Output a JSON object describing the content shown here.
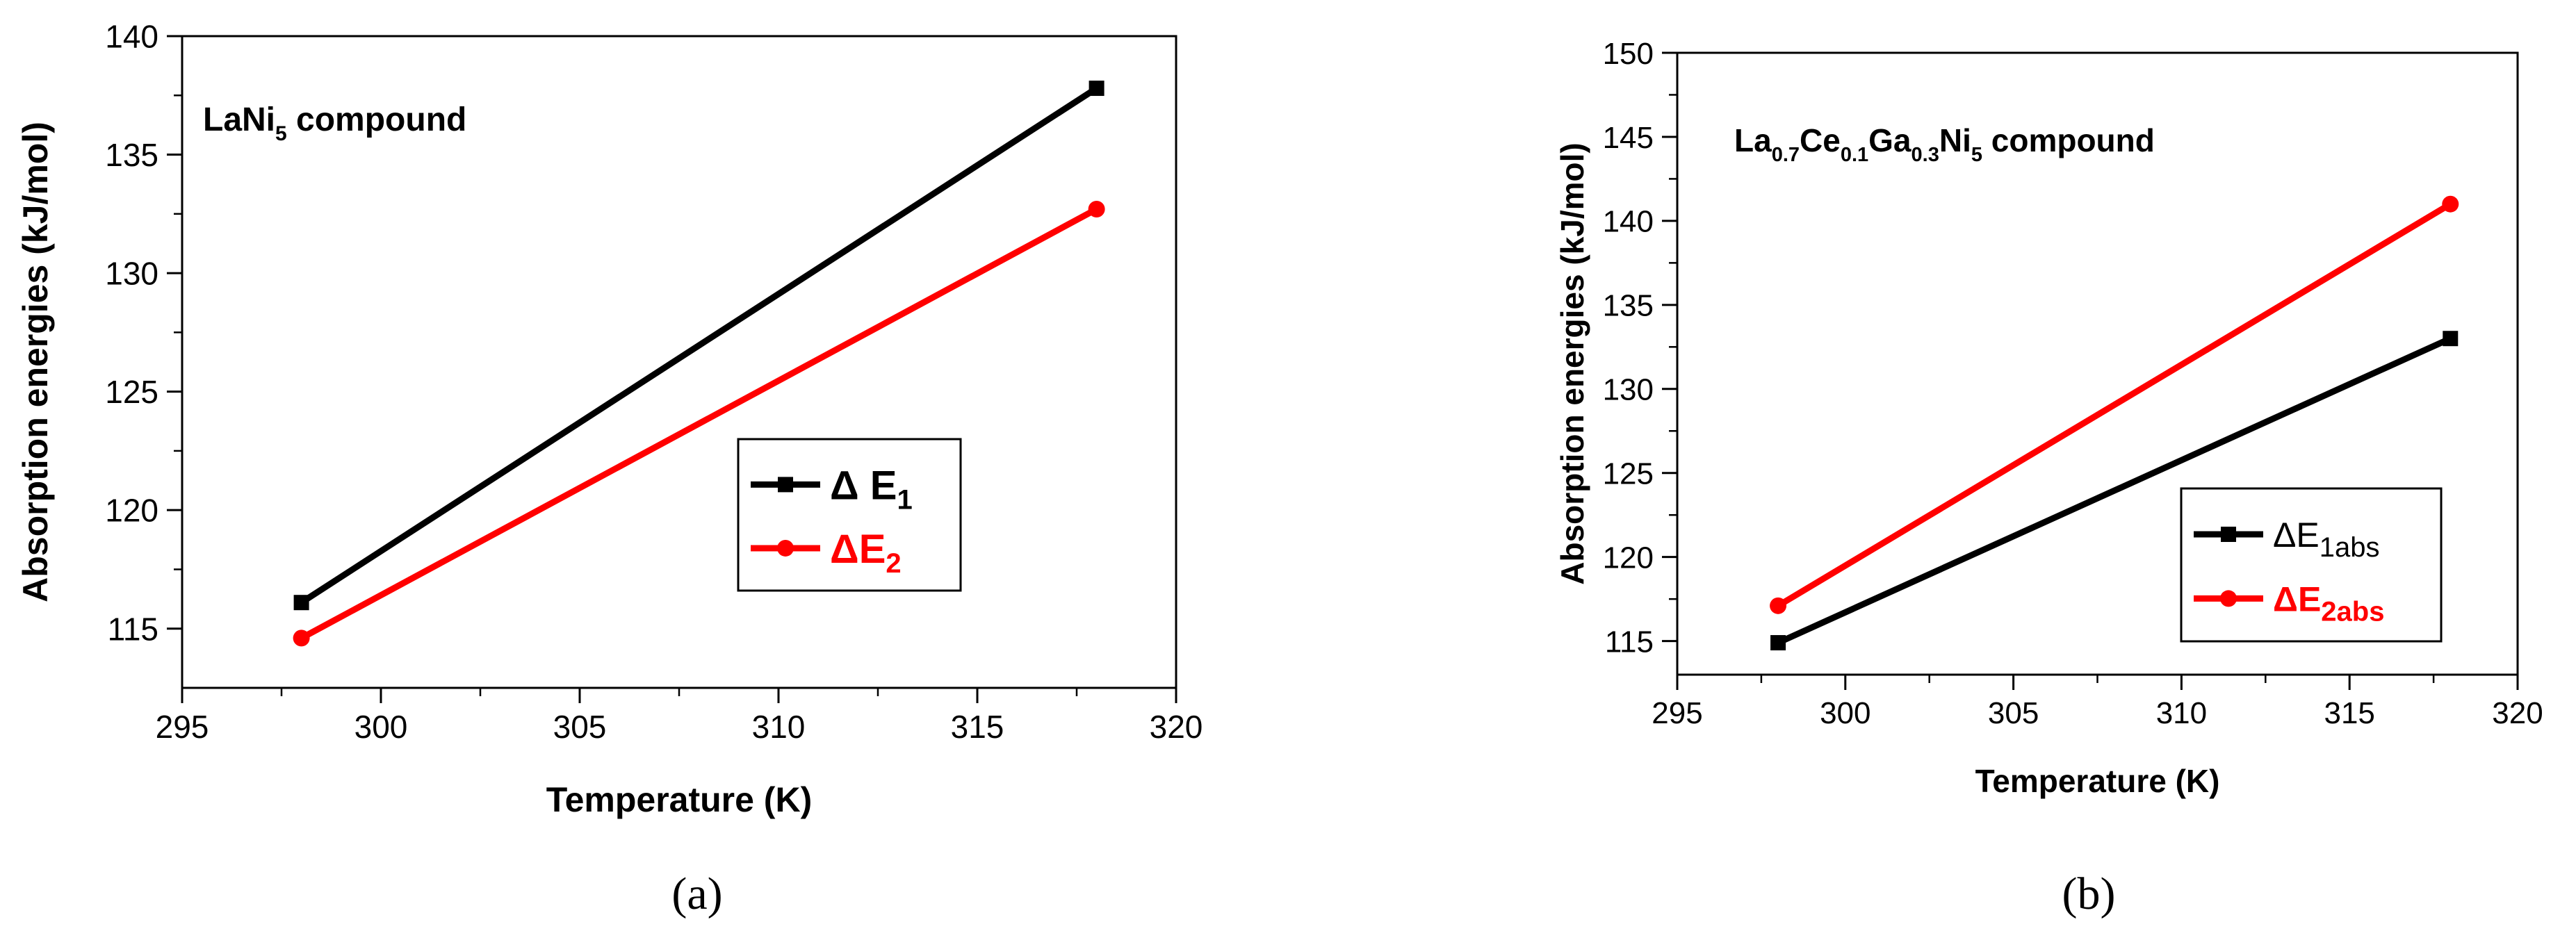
{
  "chart_data": [
    {
      "type": "line",
      "panel_label": "(a)",
      "annotation": {
        "base": "LaNi",
        "sub": "5",
        "tail": " compound"
      },
      "xlabel": "Temperature (K)",
      "ylabel": "Absorption energies (kJ/mol)",
      "xlim": [
        295,
        320
      ],
      "ylim": [
        112.5,
        140
      ],
      "xticks": [
        295,
        300,
        305,
        310,
        315,
        320
      ],
      "yticks": [
        115,
        120,
        125,
        130,
        135,
        140
      ],
      "grid": false,
      "legend_position": "center-right",
      "series": [
        {
          "name": "Δ E1",
          "legend": {
            "main": "Δ E",
            "sub": "1"
          },
          "color": "#000000",
          "marker": "square",
          "x": [
            298,
            318
          ],
          "y": [
            116.1,
            137.8
          ]
        },
        {
          "name": "ΔE2",
          "legend": {
            "main": "ΔE",
            "sub": "2"
          },
          "color": "#ff0000",
          "marker": "circle",
          "x": [
            298,
            318
          ],
          "y": [
            114.6,
            132.7
          ]
        }
      ]
    },
    {
      "type": "line",
      "panel_label": "(b)",
      "annotation": {
        "parts": [
          [
            "La",
            "0.7"
          ],
          [
            "Ce",
            "0.1"
          ],
          [
            "Ga",
            "0.3"
          ],
          [
            "Ni",
            "5"
          ]
        ],
        "tail": " compound"
      },
      "xlabel": "Temperature (K)",
      "ylabel": "Absorption energies (kJ/mol)",
      "xlim": [
        295,
        320
      ],
      "ylim": [
        113,
        150
      ],
      "xticks": [
        295,
        300,
        305,
        310,
        315,
        320
      ],
      "yticks": [
        115,
        120,
        125,
        130,
        135,
        140,
        145,
        150
      ],
      "grid": false,
      "legend_position": "lower-right",
      "series": [
        {
          "name": "ΔE1abs",
          "legend": {
            "main": "ΔE",
            "sub": "1abs"
          },
          "color": "#000000",
          "marker": "square",
          "x": [
            298,
            318
          ],
          "y": [
            114.9,
            133.0
          ]
        },
        {
          "name": "ΔE2abs",
          "legend": {
            "main": "ΔE",
            "sub": "2abs"
          },
          "color": "#ff0000",
          "marker": "circle",
          "x": [
            298,
            318
          ],
          "y": [
            117.1,
            141.0
          ]
        }
      ]
    }
  ]
}
